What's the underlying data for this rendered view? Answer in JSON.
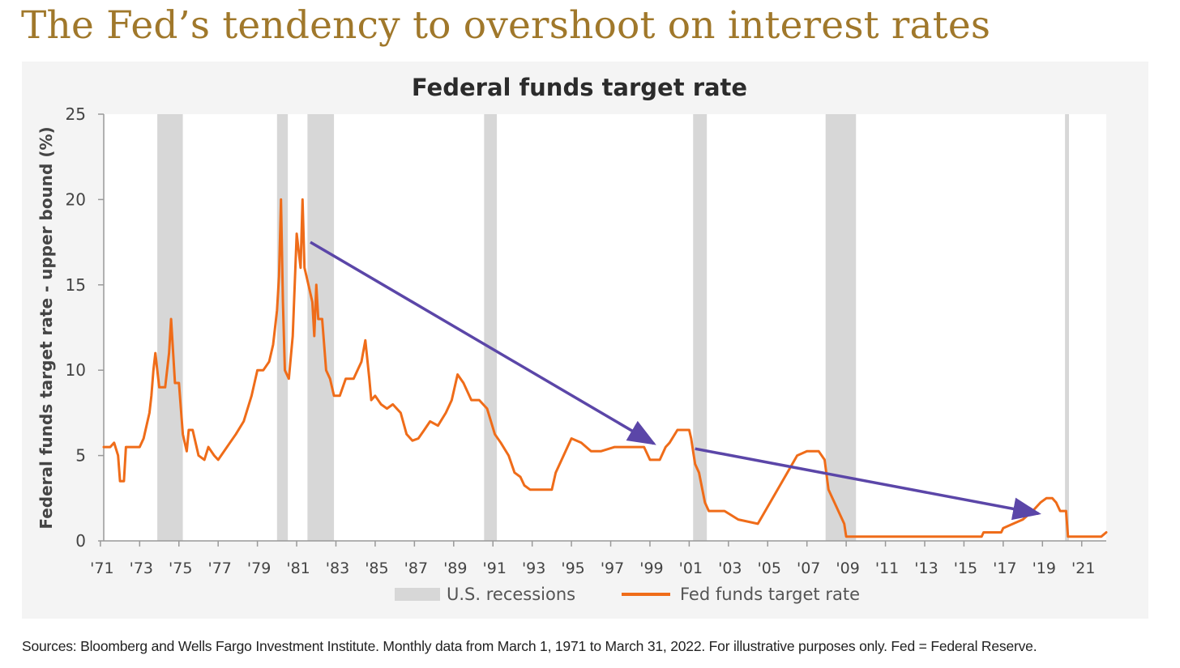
{
  "headline": "The Fed’s tendency to overshoot on interest rates",
  "footnote": "Sources: Bloomberg and Wells Fargo Investment Institute. Monthly data from March 1, 1971 to March 31, 2022. For illustrative purposes only. Fed = Federal Reserve.",
  "legend": {
    "recessions_label": "U.S. recessions",
    "rate_label": "Fed funds target rate"
  },
  "colors": {
    "title": "#a0782b",
    "line": "#ef6c19",
    "recession": "#d7d7d7",
    "arrow": "#5b46a8",
    "panel": "#f4f4f4"
  },
  "chart_data": {
    "type": "line",
    "title": "Federal funds target rate",
    "ylabel": "Federal funds target rate - upper bound (%)",
    "xlabel": "",
    "ylim": [
      0,
      25
    ],
    "xlim": [
      1971.17,
      2022.25
    ],
    "yticks": [
      0,
      5,
      10,
      15,
      20,
      25
    ],
    "xtick_labels": [
      "'71",
      "'73",
      "'75",
      "'77",
      "'79",
      "'81",
      "'83",
      "'85",
      "'87",
      "'89",
      "'91",
      "'93",
      "'95",
      "'97",
      "'99",
      "'01",
      "'03",
      "'05",
      "'07",
      "'09",
      "'11",
      "'13",
      "'15",
      "'17",
      "'19",
      "'21"
    ],
    "xtick_years": [
      1971,
      1973,
      1975,
      1977,
      1979,
      1981,
      1983,
      1985,
      1987,
      1989,
      1991,
      1993,
      1995,
      1997,
      1999,
      2001,
      2003,
      2005,
      2007,
      2009,
      2011,
      2013,
      2015,
      2017,
      2019,
      2021
    ],
    "grid": false,
    "legend_position": "bottom-center",
    "recessions": [
      [
        1973.9,
        1975.2
      ],
      [
        1980.0,
        1980.55
      ],
      [
        1981.55,
        1982.9
      ],
      [
        1990.55,
        1991.2
      ],
      [
        2001.2,
        2001.9
      ],
      [
        2007.95,
        2009.5
      ],
      [
        2020.15,
        2020.35
      ]
    ],
    "series": [
      {
        "name": "Fed funds target rate",
        "x": [
          1971.17,
          1971.5,
          1971.7,
          1971.9,
          1972.0,
          1972.2,
          1972.3,
          1973.0,
          1973.2,
          1973.4,
          1973.5,
          1973.6,
          1973.7,
          1973.8,
          1974.0,
          1974.3,
          1974.5,
          1974.6,
          1974.8,
          1975.0,
          1975.2,
          1975.4,
          1975.5,
          1975.7,
          1976.0,
          1976.3,
          1976.5,
          1976.8,
          1977.0,
          1977.6,
          1977.9,
          1978.3,
          1978.7,
          1979.0,
          1979.3,
          1979.6,
          1979.8,
          1980.0,
          1980.1,
          1980.2,
          1980.3,
          1980.4,
          1980.6,
          1980.8,
          1981.0,
          1981.2,
          1981.3,
          1981.4,
          1981.5,
          1981.6,
          1981.8,
          1981.9,
          1982.0,
          1982.1,
          1982.3,
          1982.5,
          1982.7,
          1982.9,
          1983.2,
          1983.5,
          1983.9,
          1984.3,
          1984.5,
          1984.7,
          1984.8,
          1985.0,
          1985.3,
          1985.6,
          1985.9,
          1986.3,
          1986.6,
          1986.9,
          1987.2,
          1987.5,
          1987.8,
          1988.2,
          1988.6,
          1988.9,
          1989.2,
          1989.5,
          1989.9,
          1990.3,
          1990.7,
          1990.9,
          1991.1,
          1991.4,
          1991.8,
          1992.1,
          1992.4,
          1992.6,
          1992.9,
          1993.5,
          1994.0,
          1994.2,
          1994.5,
          1994.8,
          1995.0,
          1995.5,
          1996.0,
          1996.5,
          1997.2,
          1998.0,
          1998.7,
          1999.0,
          1999.5,
          1999.8,
          2000.0,
          2000.4,
          2001.0,
          2001.1,
          2001.3,
          2001.5,
          2001.8,
          2002.0,
          2002.8,
          2003.5,
          2004.5,
          2005.0,
          2005.5,
          2006.0,
          2006.5,
          2007.0,
          2007.6,
          2007.9,
          2008.1,
          2008.5,
          2008.9,
          2009.0,
          2010.0,
          2012.0,
          2014.0,
          2015.9,
          2016.0,
          2016.9,
          2017.0,
          2017.5,
          2018.0,
          2018.5,
          2018.9,
          2019.2,
          2019.5,
          2019.7,
          2019.9,
          2020.2,
          2020.3,
          2021.0,
          2022.0,
          2022.25
        ],
        "values": [
          5.5,
          5.5,
          5.75,
          5.0,
          3.5,
          3.5,
          5.5,
          5.5,
          6.0,
          7.0,
          7.5,
          8.5,
          10.0,
          11.0,
          9.0,
          9.0,
          11.0,
          13.0,
          9.25,
          9.25,
          6.25,
          5.25,
          6.5,
          6.5,
          5.0,
          4.75,
          5.5,
          5.0,
          4.75,
          5.75,
          6.25,
          7.0,
          8.5,
          10.0,
          10.0,
          10.5,
          11.5,
          13.5,
          15.5,
          20.0,
          14.0,
          10.0,
          9.5,
          12.0,
          18.0,
          16.0,
          20.0,
          16.0,
          15.5,
          15.0,
          14.0,
          12.0,
          15.0,
          13.0,
          13.0,
          10.0,
          9.5,
          8.5,
          8.5,
          9.5,
          9.5,
          10.5,
          11.75,
          9.5,
          8.25,
          8.5,
          8.0,
          7.75,
          8.0,
          7.5,
          6.25,
          5.875,
          6.0,
          6.5,
          7.0,
          6.75,
          7.5,
          8.25,
          9.75,
          9.25,
          8.25,
          8.25,
          7.75,
          7.0,
          6.25,
          5.75,
          5.0,
          4.0,
          3.75,
          3.25,
          3.0,
          3.0,
          3.0,
          4.0,
          4.75,
          5.5,
          6.0,
          5.75,
          5.25,
          5.25,
          5.5,
          5.5,
          5.5,
          4.75,
          4.75,
          5.5,
          5.75,
          6.5,
          6.5,
          6.0,
          4.5,
          4.0,
          2.25,
          1.75,
          1.75,
          1.25,
          1.0,
          2.0,
          3.0,
          4.0,
          5.0,
          5.25,
          5.25,
          4.75,
          3.0,
          2.0,
          1.0,
          0.25,
          0.25,
          0.25,
          0.25,
          0.25,
          0.5,
          0.5,
          0.75,
          1.0,
          1.25,
          1.75,
          2.25,
          2.5,
          2.5,
          2.25,
          1.75,
          1.75,
          0.25,
          0.25,
          0.25,
          0.5
        ]
      }
    ],
    "annotations": [
      {
        "type": "arrow",
        "from": [
          1981.7,
          17.5
        ],
        "to": [
          1999.2,
          5.7
        ]
      },
      {
        "type": "arrow",
        "from": [
          2001.3,
          5.4
        ],
        "to": [
          2018.8,
          1.6
        ]
      }
    ]
  }
}
